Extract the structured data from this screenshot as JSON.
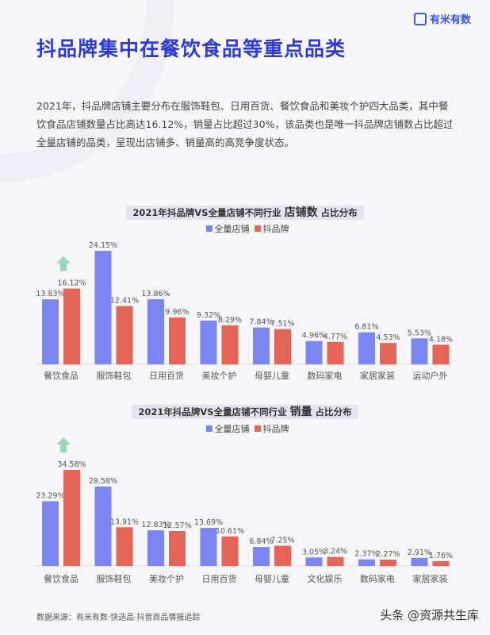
{
  "logo": {
    "text": "有米有数"
  },
  "title": "抖品牌集中在餐饮食品等重点品类",
  "intro": "2021年，抖品牌店铺主要分布在服饰鞋包、日用百货、餐饮食品和美妆个护四大品类，其中餐饮食品店铺数量占比高达16.12%，销量占比超过30%，该品类也是唯一抖品牌店铺数占比超过全量店铺的品类，呈现出店铺多、销量高的高竞争度状态。",
  "colors": {
    "all": "#7b86f2",
    "douyin": "#e46457",
    "arrow": "#7fcfa8"
  },
  "chart_data": [
    {
      "type": "bar",
      "title_prefix": "2021年抖品牌VS全量店铺不同行业",
      "title_emph": "店铺数",
      "title_suffix": "占比分布",
      "legend": [
        "全量店铺",
        "抖品牌"
      ],
      "categories": [
        "餐饮食品",
        "服饰鞋包",
        "日用百货",
        "美妆个护",
        "母婴儿童",
        "数码家电",
        "家居家装",
        "运动户外"
      ],
      "series": [
        {
          "name": "全量店铺",
          "values": [
            13.83,
            24.15,
            13.86,
            9.32,
            7.84,
            4.96,
            6.81,
            5.53
          ]
        },
        {
          "name": "抖品牌",
          "values": [
            16.12,
            12.41,
            9.96,
            8.29,
            7.51,
            4.77,
            4.53,
            4.18
          ]
        }
      ],
      "labels": [
        [
          "13.83%",
          "24.15%",
          "13.86%",
          "9.32%",
          "7.84%",
          "4.96%",
          "6.81%",
          "5.53%"
        ],
        [
          "16.12%",
          "12.41%",
          "9.96%",
          "8.29%",
          "7.51%",
          "4.77%",
          "4.53%",
          "4.18%"
        ]
      ],
      "highlight": "餐饮食品"
    },
    {
      "type": "bar",
      "title_prefix": "2021年抖品牌VS全量店铺不同行业",
      "title_emph": "销量",
      "title_suffix": "占比分布",
      "legend": [
        "全量店铺",
        "抖品牌"
      ],
      "categories": [
        "餐饮食品",
        "服饰鞋包",
        "美妆个护",
        "日用百货",
        "母婴儿童",
        "文化娱乐",
        "数码家电",
        "家居家装"
      ],
      "series": [
        {
          "name": "全量店铺",
          "values": [
            23.29,
            28.58,
            12.83,
            13.69,
            6.84,
            3.05,
            2.37,
            2.91
          ]
        },
        {
          "name": "抖品牌",
          "values": [
            34.58,
            13.91,
            12.57,
            10.61,
            7.25,
            3.24,
            2.27,
            1.76
          ]
        }
      ],
      "labels": [
        [
          "23.29%",
          "28.58%",
          "12.83%",
          "13.69%",
          "6.84%",
          "3.05%",
          "2.37%",
          "2.91%"
        ],
        [
          "34.58%",
          "13.91%",
          "12.57%",
          "10.61%",
          "7.25%",
          "3.24%",
          "2.27%",
          "1.76%"
        ]
      ],
      "highlight": "餐饮食品"
    }
  ],
  "footer": "数据来源：有米有数·快选品·抖音商品情报追踪",
  "watermark": "头条 @资源共生库"
}
